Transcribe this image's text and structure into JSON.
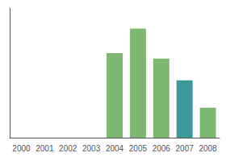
{
  "chart_data": {
    "type": "bar",
    "categories": [
      "2000",
      "2001",
      "2002",
      "2003",
      "2004",
      "2005",
      "2006",
      "2007",
      "2008"
    ],
    "values": [
      0,
      0,
      0,
      0,
      62,
      80,
      58,
      42,
      22
    ],
    "colors": [
      "#7db870",
      "#7db870",
      "#7db870",
      "#7db870",
      "#7db870",
      "#7db870",
      "#7db870",
      "#3a9a9a",
      "#7db870"
    ],
    "ylim": [
      0,
      95
    ],
    "yticks": [],
    "grid": false,
    "tick_labels": "x"
  }
}
